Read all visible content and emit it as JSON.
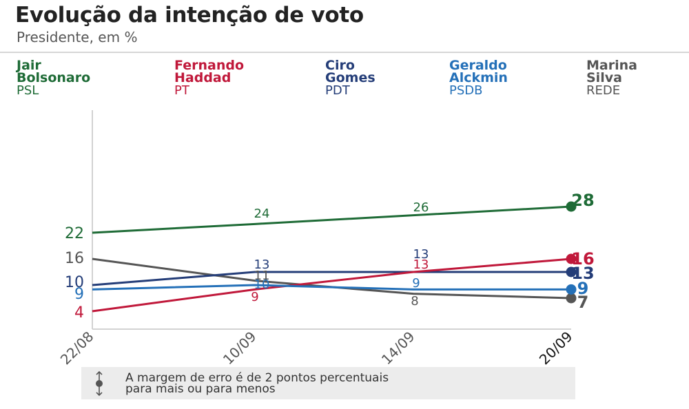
{
  "header": {
    "title": "Evolução da intenção de voto",
    "subtitle": "Presidente, em %"
  },
  "legend": [
    {
      "name": "Jair\nBolsonaro",
      "party": "PSL",
      "color": "#1e6b36"
    },
    {
      "name": "Fernando\nHaddad",
      "party": "PT",
      "color": "#c0183a"
    },
    {
      "name": "Ciro\nGomes",
      "party": "PDT",
      "color": "#243d78"
    },
    {
      "name": "Geraldo\nAlckmin",
      "party": "PSDB",
      "color": "#2470b8"
    },
    {
      "name": "Marina\nSilva",
      "party": "REDE",
      "color": "#555555"
    }
  ],
  "note": {
    "text": "A margem de erro é de 2 pontos percentuais\npara mais ou para menos",
    "icon": "error-margin-icon"
  },
  "chart_data": {
    "type": "line",
    "categories": [
      "22/08",
      "10/09",
      "14/09",
      "20/09"
    ],
    "ylim": [
      4,
      28
    ],
    "series": [
      {
        "name": "Jair Bolsonaro",
        "party": "PSL",
        "color": "#1e6b36",
        "values": [
          22,
          24,
          26,
          28
        ],
        "labels": [
          "22",
          "24",
          "26",
          "28"
        ]
      },
      {
        "name": "Fernando Haddad",
        "party": "PT",
        "color": "#c0183a",
        "values": [
          4,
          9,
          13,
          16
        ],
        "labels": [
          "4",
          "9",
          "13",
          "16"
        ]
      },
      {
        "name": "Ciro Gomes",
        "party": "PDT",
        "color": "#243d78",
        "values": [
          10,
          13,
          13,
          13
        ],
        "labels": [
          "10",
          "13",
          "13",
          "13"
        ]
      },
      {
        "name": "Geraldo Alckmin",
        "party": "PSDB",
        "color": "#2470b8",
        "values": [
          9,
          10,
          9,
          9
        ],
        "labels": [
          "9",
          "10",
          "9",
          "9"
        ]
      },
      {
        "name": "Marina Silva",
        "party": "REDE",
        "color": "#555555",
        "values": [
          16,
          11,
          8,
          7
        ],
        "labels": [
          "16",
          "11",
          "8",
          "7"
        ]
      }
    ]
  }
}
